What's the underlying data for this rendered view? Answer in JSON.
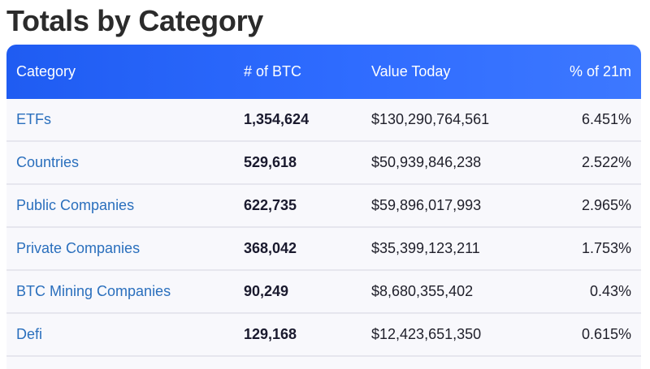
{
  "title": "Totals by Category",
  "table": {
    "headers": {
      "category": "Category",
      "btc": "# of BTC",
      "value": "Value Today",
      "percent": "% of 21m"
    },
    "rows": [
      {
        "category": "ETFs",
        "btc": "1,354,624",
        "value": "$130,290,764,561",
        "percent": "6.451%"
      },
      {
        "category": "Countries",
        "btc": "529,618",
        "value": "$50,939,846,238",
        "percent": "2.522%"
      },
      {
        "category": "Public Companies",
        "btc": "622,735",
        "value": "$59,896,017,993",
        "percent": "2.965%"
      },
      {
        "category": "Private Companies",
        "btc": "368,042",
        "value": "$35,399,123,211",
        "percent": "1.753%"
      },
      {
        "category": "BTC Mining Companies",
        "btc": "90,249",
        "value": "$8,680,355,402",
        "percent": "0.43%"
      },
      {
        "category": "Defi",
        "btc": "129,168",
        "value": "$12,423,651,350",
        "percent": "0.615%"
      }
    ]
  },
  "colors": {
    "header_gradient_start": "#1f5cf2",
    "header_gradient_end": "#3d78ff",
    "category_link": "#2a6fbd",
    "row_background": "#f8f8fc",
    "title_text": "#2b2b2b"
  }
}
